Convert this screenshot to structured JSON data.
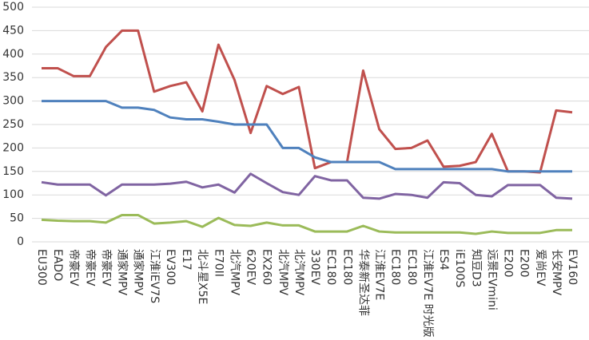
{
  "chart_data": {
    "type": "line",
    "categories": [
      "EU300",
      "EADO",
      "帝豪EV",
      "帝豪EV",
      "帝豪EV",
      "通家MPV",
      "通家MPV",
      "江淮iEV7S",
      "EV300",
      "E17",
      "北斗星X5E",
      "E70II",
      "北汽MPV",
      "620EV",
      "EX260",
      "北汽MPV",
      "北汽MPV",
      "330EV",
      "EC180",
      "EC180",
      "华泰新圣达菲",
      "江淮EV7E",
      "EC180",
      "EC180",
      "江淮EV7E 时光版",
      "ES4",
      "iE100S",
      "知豆D3",
      "远景EVmini",
      "E200",
      "E200",
      "爱尚EV",
      "长安MPV",
      "EV160"
    ],
    "series": [
      {
        "color": "#c0504d",
        "values": [
          370,
          370,
          353,
          353,
          415,
          450,
          450,
          320,
          332,
          340,
          278,
          420,
          345,
          232,
          332,
          315,
          330,
          157,
          170,
          170,
          365,
          240,
          198,
          200,
          216,
          160,
          162,
          170,
          230,
          150,
          150,
          148,
          280,
          276
        ]
      },
      {
        "color": "#4f81bd",
        "values": [
          300,
          300,
          300,
          300,
          300,
          286,
          286,
          281,
          265,
          261,
          261,
          256,
          250,
          250,
          250,
          200,
          200,
          180,
          170,
          170,
          170,
          170,
          155,
          155,
          155,
          155,
          155,
          155,
          155,
          150,
          150,
          150,
          150,
          150
        ]
      },
      {
        "color": "#8064a2",
        "values": [
          127,
          122,
          122,
          122,
          99,
          122,
          122,
          122,
          124,
          128,
          116,
          122,
          105,
          145,
          125,
          106,
          100,
          140,
          131,
          131,
          94,
          92,
          102,
          100,
          94,
          127,
          125,
          100,
          97,
          121,
          121,
          121,
          94,
          92
        ]
      },
      {
        "color": "#9bbb59",
        "values": [
          47,
          45,
          44,
          44,
          41,
          57,
          57,
          39,
          41,
          44,
          32,
          51,
          36,
          34,
          41,
          35,
          35,
          22,
          22,
          22,
          34,
          22,
          20,
          20,
          20,
          20,
          20,
          17,
          22,
          19,
          19,
          19,
          25,
          25
        ]
      }
    ],
    "ylim": [
      0,
      500
    ],
    "yticks": [
      0,
      50,
      100,
      150,
      200,
      250,
      300,
      350,
      400,
      450,
      500
    ],
    "grid": true
  }
}
